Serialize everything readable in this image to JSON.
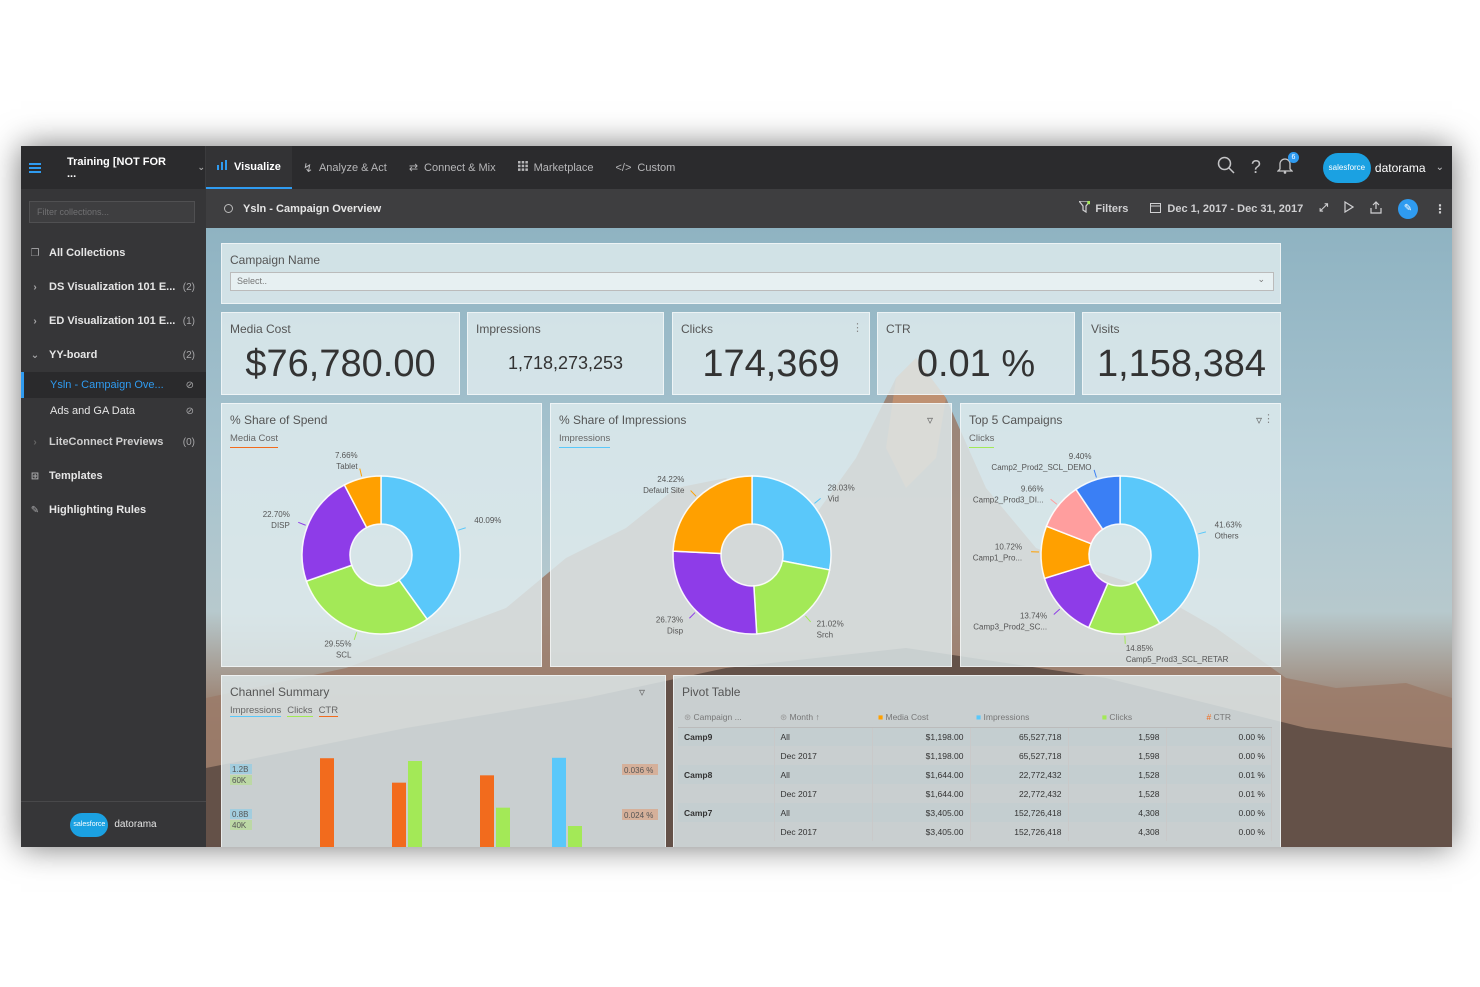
{
  "topnav": {
    "workspace": "Training [NOT FOR ...",
    "tabs": [
      {
        "label": "Visualize",
        "icon": "bar-chart-icon",
        "active": true
      },
      {
        "label": "Analyze & Act",
        "icon": "bolt-icon",
        "active": false
      },
      {
        "label": "Connect & Mix",
        "icon": "connect-icon",
        "active": false
      },
      {
        "label": "Marketplace",
        "icon": "grid-icon",
        "active": false
      },
      {
        "label": "Custom",
        "icon": "code-icon",
        "active": false
      }
    ],
    "notifications": "6",
    "brand": "datorama",
    "brand_cloud": "salesforce"
  },
  "sidebar": {
    "filter_placeholder": "Filter collections...",
    "all_collections": "All Collections",
    "collections": [
      {
        "label": "DS Visualization 101 E...",
        "count": "(2)",
        "expanded": false
      },
      {
        "label": "ED Visualization 101 E...",
        "count": "(1)",
        "expanded": false
      },
      {
        "label": "YY-board",
        "count": "(2)",
        "expanded": true
      }
    ],
    "pages": [
      {
        "label": "Ysln - Campaign Ove...",
        "selected": true
      },
      {
        "label": "Ads and GA Data",
        "selected": false
      }
    ],
    "liteconnect": {
      "label": "LiteConnect Previews",
      "count": "(0)"
    },
    "templates": "Templates",
    "highlighting_rules": "Highlighting Rules",
    "footer_brand": "datorama",
    "footer_cloud": "salesforce"
  },
  "dashboard": {
    "title": "Ysln - Campaign Overview",
    "filters_label": "Filters",
    "date_range": "Dec 1, 2017 - Dec 31, 2017"
  },
  "campaign_filter": {
    "label": "Campaign Name",
    "placeholder": "Select.."
  },
  "kpis": [
    {
      "label": "Media Cost",
      "value": "$76,780.00"
    },
    {
      "label": "Impressions",
      "value": "1,718,273,253"
    },
    {
      "label": "Clicks",
      "value": "174,369"
    },
    {
      "label": "CTR",
      "value": "0.01 %"
    },
    {
      "label": "Visits",
      "value": "1,158,384"
    }
  ],
  "chart_data": [
    {
      "type": "pie",
      "title": "% Share of Spend",
      "measure": "Media Cost",
      "slices": [
        {
          "label": "",
          "value": 40.09,
          "display": "40.09%",
          "color": "#5ac8fa"
        },
        {
          "label": "SCL",
          "value": 29.55,
          "display": "29.55%",
          "color": "#a3e957"
        },
        {
          "label": "DISP",
          "value": 22.7,
          "display": "22.70%",
          "color": "#8e3ce8"
        },
        {
          "label": "Tablet",
          "value": 7.66,
          "display": "7.66%",
          "color": "#ffa000"
        }
      ]
    },
    {
      "type": "pie",
      "title": "% Share of Impressions",
      "measure": "Impressions",
      "slices": [
        {
          "label": "Vid",
          "value": 28.03,
          "display": "28.03%",
          "color": "#5ac8fa"
        },
        {
          "label": "Srch",
          "value": 21.02,
          "display": "21.02%",
          "color": "#a3e957"
        },
        {
          "label": "Disp",
          "value": 26.73,
          "display": "26.73%",
          "color": "#8e3ce8"
        },
        {
          "label": "Default Site",
          "value": 24.22,
          "display": "24.22%",
          "color": "#ffa000"
        }
      ]
    },
    {
      "type": "pie",
      "title": "Top 5 Campaigns",
      "measure": "Clicks",
      "slices": [
        {
          "label": "Others",
          "value": 41.63,
          "display": "41.63%",
          "color": "#5ac8fa"
        },
        {
          "label": "Camp5_Prod3_SCL_RETAR",
          "value": 14.85,
          "display": "14.85%",
          "color": "#a3e957"
        },
        {
          "label": "Camp3_Prod2_SC...",
          "value": 13.74,
          "display": "13.74%",
          "color": "#8e3ce8"
        },
        {
          "label": "Camp1_Pro...",
          "value": 10.72,
          "display": "10.72%",
          "color": "#ffa000"
        },
        {
          "label": "Camp2_Prod3_DI...",
          "value": 9.66,
          "display": "9.66%",
          "color": "#ff9e9e"
        },
        {
          "label": "Camp2_Prod2_SCL_DEMO",
          "value": 9.4,
          "display": "9.40%",
          "color": "#3a7ff5"
        }
      ]
    },
    {
      "type": "bar",
      "title": "Channel Summary",
      "legend": [
        "Impressions",
        "Clicks",
        "CTR"
      ],
      "left_axis_ticks": [
        {
          "imp": "1.2B",
          "clk": "60K"
        },
        {
          "imp": "0.8B",
          "clk": "40K"
        }
      ],
      "right_axis_ticks": [
        "0.036 %",
        "0.024 %"
      ],
      "series": [
        {
          "name": "Impressions",
          "color": "#5ac8fa",
          "values": [
            0,
            0,
            0,
            1.25
          ]
        },
        {
          "name": "Clicks",
          "color": "#a3e957",
          "values": [
            0,
            57000,
            29000,
            18000
          ]
        },
        {
          "name": "CTR",
          "color": "#f26b1d",
          "values": [
            0.04,
            0.03,
            0.033,
            0
          ]
        }
      ]
    }
  ],
  "pivot": {
    "title": "Pivot Table",
    "columns": [
      "Campaign ...",
      "Month",
      "Media Cost",
      "Impressions",
      "Clicks",
      "CTR"
    ],
    "rows": [
      {
        "campaign": "Camp9",
        "month": "All",
        "cost": "$1,198.00",
        "imp": "65,527,718",
        "clicks": "1,598",
        "ctr": "0.00 %"
      },
      {
        "campaign": "",
        "month": "Dec 2017",
        "cost": "$1,198.00",
        "imp": "65,527,718",
        "clicks": "1,598",
        "ctr": "0.00 %"
      },
      {
        "campaign": "Camp8",
        "month": "All",
        "cost": "$1,644.00",
        "imp": "22,772,432",
        "clicks": "1,528",
        "ctr": "0.01 %"
      },
      {
        "campaign": "",
        "month": "Dec 2017",
        "cost": "$1,644.00",
        "imp": "22,772,432",
        "clicks": "1,528",
        "ctr": "0.01 %"
      },
      {
        "campaign": "Camp7",
        "month": "All",
        "cost": "$3,405.00",
        "imp": "152,726,418",
        "clicks": "4,308",
        "ctr": "0.00 %"
      },
      {
        "campaign": "",
        "month": "Dec 2017",
        "cost": "$3,405.00",
        "imp": "152,726,418",
        "clicks": "4,308",
        "ctr": "0.00 %"
      }
    ]
  }
}
